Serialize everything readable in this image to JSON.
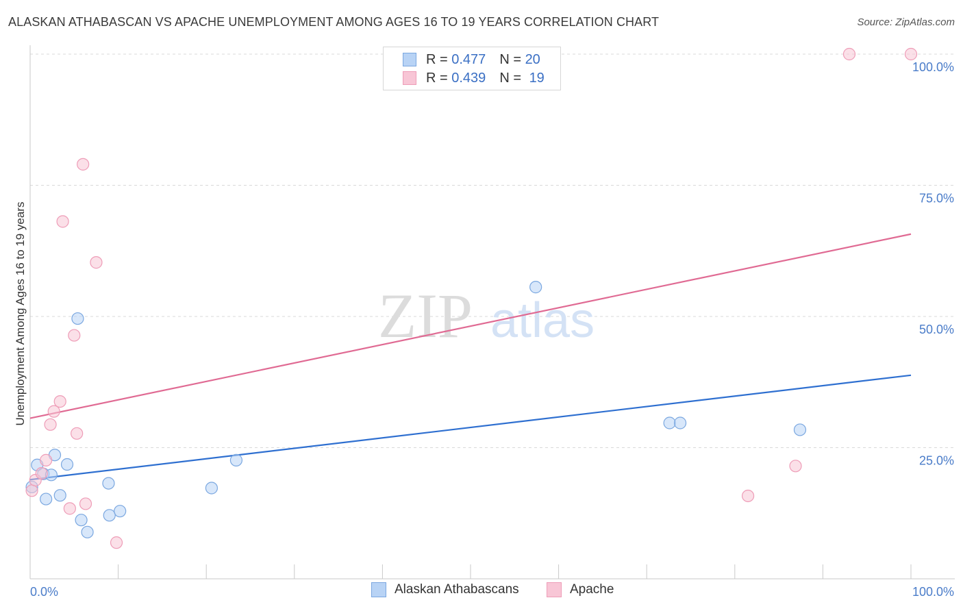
{
  "header": {
    "title": "ALASKAN ATHABASCAN VS APACHE UNEMPLOYMENT AMONG AGES 16 TO 19 YEARS CORRELATION CHART",
    "source": "Source: ZipAtlas.com"
  },
  "legend": {
    "rows": [
      {
        "r_label": "R = ",
        "r_value": "0.477",
        "n_label": "N = ",
        "n_value": "20"
      },
      {
        "r_label": "R = ",
        "r_value": "0.439",
        "n_label": "N = ",
        "n_value": "19"
      }
    ]
  },
  "watermark": {
    "zip": "ZIP",
    "atlas": "atlas"
  },
  "colors": {
    "blue_fill": "#b8d3f5",
    "blue_stroke": "#7aa7e0",
    "blue_line": "#2e6fd0",
    "pink_fill": "#f8c6d6",
    "pink_stroke": "#ee9cb7",
    "pink_line": "#e06a93",
    "tick_text": "#4a7cc9",
    "grid": "#d9d9d9"
  },
  "chart_data": {
    "type": "scatter",
    "title": "ALASKAN ATHABASCAN VS APACHE UNEMPLOYMENT AMONG AGES 16 TO 19 YEARS CORRELATION CHART",
    "xlabel": "",
    "ylabel": "Unemployment Among Ages 16 to 19 years",
    "xlim": [
      0,
      100
    ],
    "ylim": [
      0,
      100
    ],
    "x_tick_labels": [
      "0.0%",
      "100.0%"
    ],
    "y_ticks": [
      25,
      50,
      75,
      100
    ],
    "y_tick_labels": [
      "25.0%",
      "50.0%",
      "75.0%",
      "100.0%"
    ],
    "legend_position": "bottom",
    "series": [
      {
        "name": "Alaskan Athabascans",
        "r": 0.477,
        "n": 20,
        "trend": [
          [
            0,
            18.9
          ],
          [
            100,
            38.8
          ]
        ],
        "points": [
          [
            0.2,
            17.5
          ],
          [
            0.8,
            21.7
          ],
          [
            1.5,
            20.0
          ],
          [
            1.8,
            15.2
          ],
          [
            2.4,
            19.8
          ],
          [
            2.8,
            23.6
          ],
          [
            3.4,
            15.9
          ],
          [
            4.2,
            21.8
          ],
          [
            5.4,
            49.6
          ],
          [
            5.8,
            11.2
          ],
          [
            6.5,
            8.9
          ],
          [
            8.9,
            18.2
          ],
          [
            9.0,
            12.1
          ],
          [
            10.2,
            12.9
          ],
          [
            20.6,
            17.3
          ],
          [
            23.4,
            22.6
          ],
          [
            57.4,
            55.6
          ],
          [
            72.6,
            29.7
          ],
          [
            73.8,
            29.7
          ],
          [
            87.4,
            28.4
          ]
        ]
      },
      {
        "name": "Apache",
        "r": 0.439,
        "n": 19,
        "trend": [
          [
            0,
            30.6
          ],
          [
            100,
            65.7
          ]
        ],
        "points": [
          [
            0.2,
            16.8
          ],
          [
            0.6,
            18.8
          ],
          [
            1.3,
            20.1
          ],
          [
            1.8,
            22.6
          ],
          [
            2.3,
            29.4
          ],
          [
            2.7,
            31.9
          ],
          [
            3.4,
            33.8
          ],
          [
            3.7,
            68.1
          ],
          [
            4.5,
            13.4
          ],
          [
            5.0,
            46.4
          ],
          [
            5.3,
            27.7
          ],
          [
            6.0,
            79.0
          ],
          [
            6.3,
            14.3
          ],
          [
            7.5,
            60.3
          ],
          [
            9.8,
            6.9
          ],
          [
            81.5,
            15.8
          ],
          [
            86.9,
            21.5
          ],
          [
            93.0,
            100.0
          ],
          [
            100.0,
            100.0
          ]
        ]
      }
    ]
  }
}
